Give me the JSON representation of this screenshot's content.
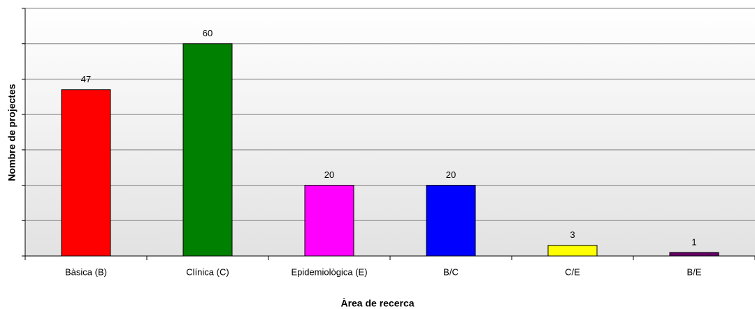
{
  "chart_data": {
    "type": "bar",
    "x_label": "Àrea de recerca",
    "y_label": "Nombre de projectes",
    "categories": [
      "Bàsica (B)",
      "Clínica (C)",
      "Epidemiològica (E)",
      "B/C",
      "C/E",
      "B/E"
    ],
    "values": [
      47,
      60,
      20,
      20,
      3,
      1
    ],
    "colors": [
      "#ff0000",
      "#008000",
      "#ff00ff",
      "#0000ff",
      "#ffff00",
      "#660066"
    ],
    "ylim": [
      0,
      70
    ],
    "yticks": [
      0,
      10,
      20,
      30,
      40,
      50,
      60,
      70
    ],
    "grid": true
  }
}
